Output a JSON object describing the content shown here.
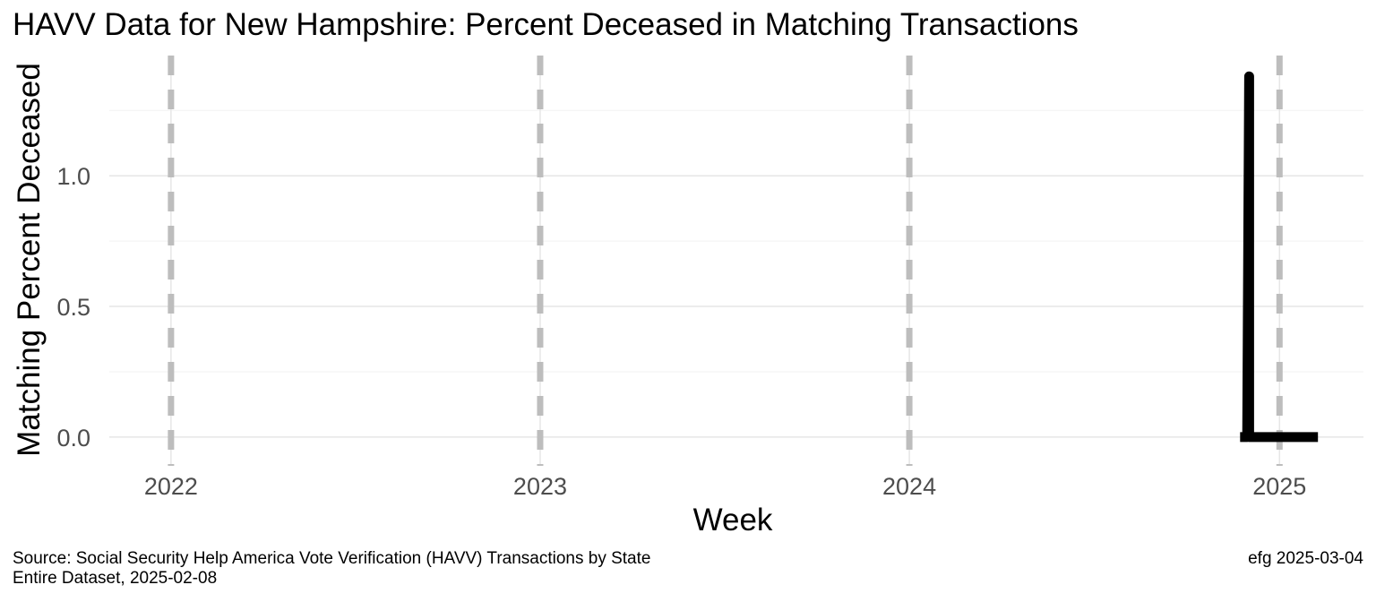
{
  "chart_data": {
    "type": "line",
    "title": "HAVV Data for New Hampshire:  Percent Deceased in Matching Transactions",
    "xlabel": "Week",
    "ylabel": "Matching Percent Deceased",
    "x_ticks": [
      "2022",
      "2023",
      "2024",
      "2025"
    ],
    "y_ticks": [
      "0.0",
      "0.5",
      "1.0"
    ],
    "xlim": [
      "2021-11-01",
      "2025-03-25"
    ],
    "ylim": [
      -0.11,
      1.46
    ],
    "year_markers": [
      "2022-01-01",
      "2023-01-01",
      "2024-01-01",
      "2025-01-01"
    ],
    "series": [
      {
        "color": "#000000",
        "points": [
          {
            "x": "2024-11-23",
            "y": 0.0
          },
          {
            "x": "2024-11-30",
            "y": 0.0
          },
          {
            "x": "2024-12-02",
            "y": 1.38
          },
          {
            "x": "2024-12-02",
            "y": 0.0
          },
          {
            "x": "2024-12-07",
            "y": 0.0
          },
          {
            "x": "2024-12-14",
            "y": 0.0
          },
          {
            "x": "2024-12-21",
            "y": 0.0
          },
          {
            "x": "2024-12-28",
            "y": 0.0
          },
          {
            "x": "2025-01-04",
            "y": 0.0
          },
          {
            "x": "2025-01-11",
            "y": 0.0
          },
          {
            "x": "2025-01-18",
            "y": 0.0
          },
          {
            "x": "2025-01-25",
            "y": 0.0
          },
          {
            "x": "2025-02-01",
            "y": 0.0
          },
          {
            "x": "2025-02-08",
            "y": 0.0
          }
        ]
      }
    ],
    "grid": true,
    "marker_color": "#bdbdbd"
  },
  "caption": {
    "source_line1": "Source:  Social Security Help America Vote Verification (HAVV) Transactions by State",
    "source_line2": "Entire Dataset, 2025-02-08",
    "credit": "efg 2025-03-04"
  }
}
